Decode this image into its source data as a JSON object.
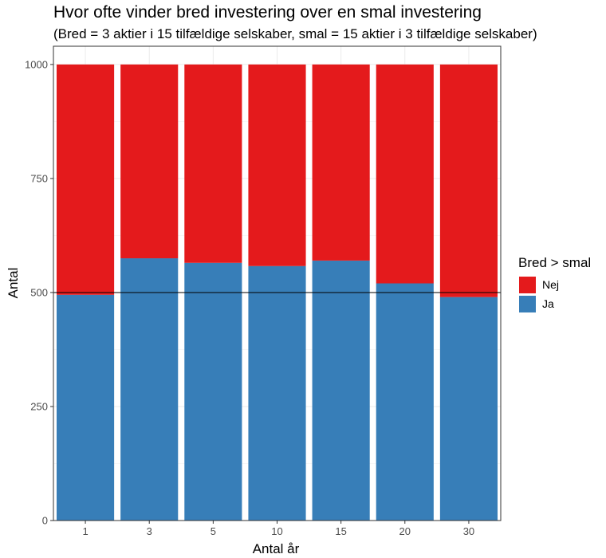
{
  "chart_data": {
    "type": "bar",
    "stacked": true,
    "title": "Hvor ofte vinder bred investering over en smal investering",
    "subtitle": "(Bred = 3 aktier i 15 tilfældige selskaber, smal = 15 aktier i 3 tilfældige selskaber)",
    "xlabel": "Antal år",
    "ylabel": "Antal",
    "categories": [
      "1",
      "3",
      "5",
      "10",
      "15",
      "20",
      "30"
    ],
    "series": [
      {
        "name": "Ja",
        "color": "#377EB8",
        "values": [
          495,
          575,
          565,
          558,
          570,
          520,
          490
        ]
      },
      {
        "name": "Nej",
        "color": "#E41A1C",
        "values": [
          505,
          425,
          435,
          442,
          430,
          480,
          510
        ]
      }
    ],
    "ylim": [
      0,
      1040
    ],
    "yticks": [
      0,
      250,
      500,
      750,
      1000
    ],
    "reference_line": 500,
    "legend": {
      "title": "Bred > smal",
      "order": [
        "Nej",
        "Ja"
      ],
      "placement": "right"
    },
    "grid": true
  }
}
